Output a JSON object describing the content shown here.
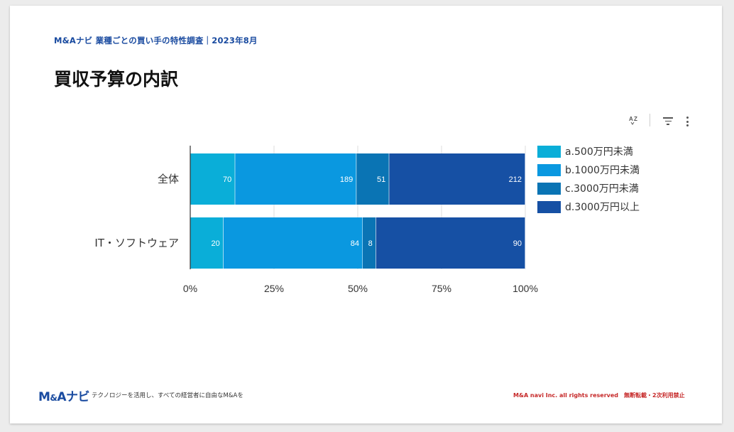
{
  "header": {
    "subtitle": "M&Aナビ 業種ごとの買い手の特性調査｜2023年8月",
    "title": "買収予算の内訳"
  },
  "toolbar": {
    "sort_icon": "sort-az-icon",
    "filter_icon": "filter-icon",
    "more_icon": "more-vert-icon"
  },
  "chart_data": {
    "type": "bar",
    "orientation": "horizontal",
    "stacked": "percent",
    "categories": [
      "全体",
      "IT・ソフトウェア"
    ],
    "series": [
      {
        "name": "a.500万円未満",
        "values": [
          70,
          20
        ],
        "color": "#0aaed8"
      },
      {
        "name": "b.1000万円未満",
        "values": [
          189,
          84
        ],
        "color": "#0a98e0"
      },
      {
        "name": "c.3000万円未満",
        "values": [
          51,
          8
        ],
        "color": "#0a74b4"
      },
      {
        "name": "d.3000万円以上",
        "values": [
          212,
          90
        ],
        "color": "#1650a4"
      }
    ],
    "x_ticks": [
      "0%",
      "25%",
      "50%",
      "75%",
      "100%"
    ],
    "xlim": [
      0,
      100
    ],
    "grid": true,
    "legend": "right"
  },
  "footer": {
    "logo_main": "M",
    "logo_amp": "&",
    "logo_rest": "Aナビ",
    "tagline": "テクノロジーを活用し、すべての経営者に自由なM&Aを",
    "copyright": "M&A navi Inc. all rights reserved　無断転載・2次利用禁止"
  }
}
